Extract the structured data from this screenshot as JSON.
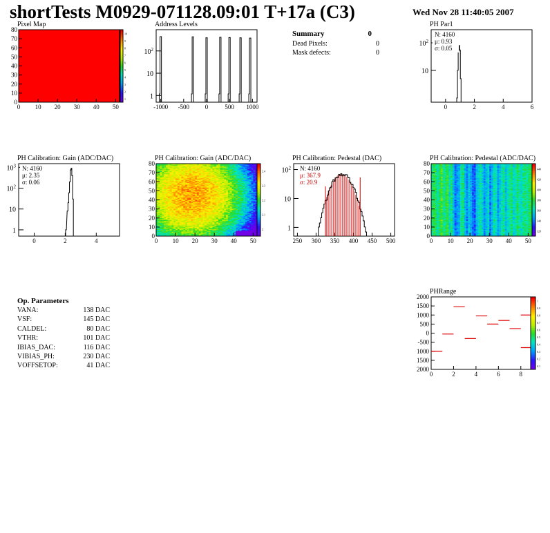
{
  "header": {
    "title": "shortTests M0929-071128.09:01 T+17a (C3)",
    "date": "Wed Nov 28 11:40:05 2007"
  },
  "summary": {
    "title": "Summary",
    "value": "0",
    "rows": [
      {
        "label": "Dead Pixels:",
        "value": "0"
      },
      {
        "label": "Mask defects:",
        "value": "0"
      }
    ]
  },
  "op_params": {
    "title": "Op. Parameters",
    "rows": [
      {
        "label": "VANA:",
        "value": "138 DAC"
      },
      {
        "label": "VSF:",
        "value": "145 DAC"
      },
      {
        "label": "CALDEL:",
        "value": "80 DAC"
      },
      {
        "label": "VTHR:",
        "value": "101 DAC"
      },
      {
        "label": "IBIAS_DAC:",
        "value": "116 DAC"
      },
      {
        "label": "VIBIAS_PH:",
        "value": "230 DAC"
      },
      {
        "label": "VOFFSETOP:",
        "value": "41 DAC"
      }
    ]
  },
  "chart_data": [
    {
      "id": "pixel-map",
      "type": "heatmap",
      "title": "Pixel Map",
      "xlim": [
        0,
        52
      ],
      "ylim": [
        0,
        80
      ],
      "xticks": [
        "0",
        "10",
        "20",
        "30",
        "40",
        "50"
      ],
      "yticks": [
        "0",
        "10",
        "20",
        "30",
        "40",
        "50",
        "60",
        "70",
        "80"
      ],
      "fill_value": 10,
      "zlim": [
        0,
        10
      ],
      "palette_ticks": [
        "1",
        "2",
        "3",
        "4",
        "5",
        "6",
        "7",
        "8",
        "9",
        "10"
      ]
    },
    {
      "id": "address-levels",
      "type": "bar",
      "title": "Address Levels",
      "xlim": [
        -1100,
        1100
      ],
      "log_y": true,
      "ylim": [
        0.5,
        900
      ],
      "xticks": [
        "-1000",
        "-500",
        "0",
        "500",
        "1000"
      ],
      "yticks": [
        "1",
        "10",
        "10^2"
      ],
      "peaks": [
        {
          "x": -1000,
          "y": 440
        },
        {
          "x": -300,
          "y": 430
        },
        {
          "x": 0,
          "y": 390
        },
        {
          "x": 300,
          "y": 410
        },
        {
          "x": 500,
          "y": 400
        },
        {
          "x": 740,
          "y": 390
        },
        {
          "x": 950,
          "y": 380
        }
      ]
    },
    {
      "id": "ph-par1",
      "type": "bar",
      "title": "PH Par1",
      "xlim": [
        -1,
        6
      ],
      "log_y": true,
      "ylim": [
        0.7,
        300
      ],
      "xticks": [
        "0",
        "2",
        "4",
        "6"
      ],
      "yticks": [
        "10",
        "10^2"
      ],
      "stats": {
        "N": "N: 4160",
        "mean": "μ: 0.93",
        "rms": "σ: 0.05"
      },
      "values": [
        {
          "x": 0.8,
          "y": 1
        },
        {
          "x": 0.85,
          "y": 10
        },
        {
          "x": 0.9,
          "y": 50
        },
        {
          "x": 0.95,
          "y": 80
        },
        {
          "x": 1.0,
          "y": 55
        },
        {
          "x": 1.05,
          "y": 5
        }
      ]
    },
    {
      "id": "ph-gain-1d",
      "type": "bar",
      "title": "PH Calibration: Gain (ADC/DAC)",
      "xlim": [
        -1,
        5.5
      ],
      "log_y": true,
      "ylim": [
        0.5,
        1500
      ],
      "xticks": [
        "0",
        "2",
        "4"
      ],
      "yticks": [
        "1",
        "10",
        "10^2",
        "10^3"
      ],
      "stats": {
        "N": "N: 4160",
        "mean": "μ: 2.35",
        "rms": "σ: 0.06"
      },
      "values": [
        {
          "x": 2.05,
          "y": 1
        },
        {
          "x": 2.15,
          "y": 8
        },
        {
          "x": 2.2,
          "y": 20
        },
        {
          "x": 2.25,
          "y": 60
        },
        {
          "x": 2.3,
          "y": 200
        },
        {
          "x": 2.35,
          "y": 750
        },
        {
          "x": 2.4,
          "y": 900
        },
        {
          "x": 2.45,
          "y": 400
        },
        {
          "x": 2.5,
          "y": 30
        }
      ]
    },
    {
      "id": "ph-gain-map",
      "type": "heatmap",
      "title": "PH Calibration: Gain (ADC/DAC)",
      "xlim": [
        0,
        52
      ],
      "ylim": [
        0,
        80
      ],
      "xticks": [
        "0",
        "10",
        "20",
        "30",
        "40",
        "50"
      ],
      "yticks": [
        "0",
        "10",
        "20",
        "30",
        "40",
        "50",
        "60",
        "70",
        "80"
      ],
      "zlim": [
        1.95,
        2.5
      ],
      "palette_ticks": [
        "2",
        "2.1",
        "2.2",
        "2.3",
        "2.4"
      ]
    },
    {
      "id": "ph-pedestal-1d",
      "type": "bar",
      "title": "PH Calibration: Pedestal (DAC)",
      "xlim": [
        240,
        510
      ],
      "log_y": true,
      "ylim": [
        0.5,
        160
      ],
      "xticks": [
        "250",
        "300",
        "350",
        "400",
        "450",
        "500"
      ],
      "yticks": [
        "1",
        "10",
        "10^2"
      ],
      "stats": {
        "N": "N: 4160",
        "mean": "μ: 367.9",
        "rms": "σ: 20.9"
      },
      "gauss_mean": 367.9,
      "gauss_sigma": 20.9,
      "peak": 70,
      "fit_range": [
        325,
        418
      ]
    },
    {
      "id": "ph-pedestal-map",
      "type": "heatmap",
      "title": "PH Calibration: Pedestal (ADC/DAC)",
      "xlim": [
        0,
        52
      ],
      "ylim": [
        0,
        80
      ],
      "xticks": [
        "0",
        "10",
        "20",
        "30",
        "40",
        "50"
      ],
      "yticks": [
        "0",
        "10",
        "20",
        "30",
        "40",
        "50",
        "60",
        "70",
        "80"
      ],
      "zlim": [
        300,
        460
      ],
      "palette_ticks": [
        "320",
        "340",
        "360",
        "380",
        "400",
        "420",
        "440"
      ]
    },
    {
      "id": "ph-range",
      "type": "scatter",
      "title": "PHRange",
      "xlim": [
        0,
        9
      ],
      "ylim": [
        -2000,
        2000
      ],
      "xticks": [
        "0",
        "2",
        "4",
        "6",
        "8"
      ],
      "yticks": [
        "2000",
        "1500",
        "1000",
        "500",
        "0",
        "-500",
        "1000",
        "1500",
        "2000"
      ],
      "palette_ticks": [
        "0.1",
        "0.2",
        "0.3",
        "0.4",
        "0.5",
        "0.6",
        "0.7",
        "0.8",
        "0.9",
        "1"
      ],
      "segments": [
        {
          "x": 0,
          "y": -1000
        },
        {
          "x": 1,
          "y": -50
        },
        {
          "x": 2,
          "y": 1450
        },
        {
          "x": 3,
          "y": -300
        },
        {
          "x": 4,
          "y": 950
        },
        {
          "x": 5,
          "y": 500
        },
        {
          "x": 6,
          "y": 700
        },
        {
          "x": 7,
          "y": 250
        },
        {
          "x": 8,
          "y": 1000
        },
        {
          "x": 8,
          "y": -800
        }
      ]
    }
  ]
}
